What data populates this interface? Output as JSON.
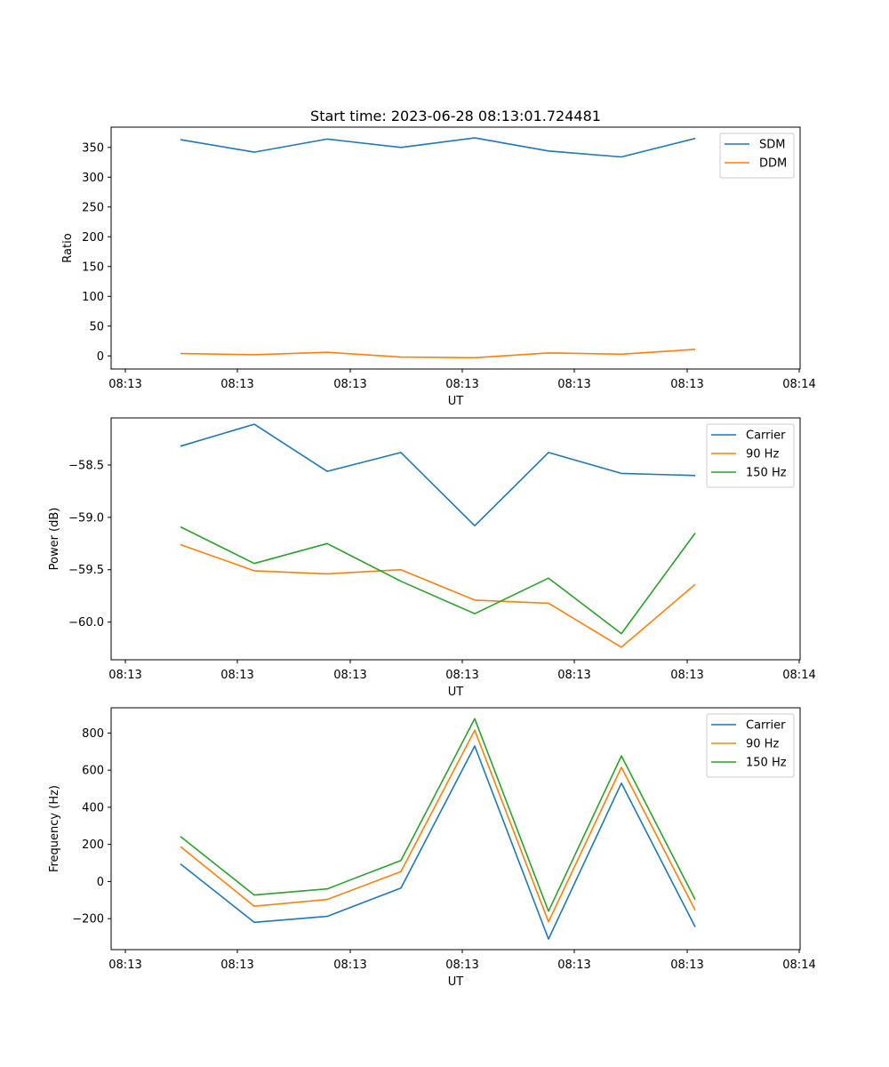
{
  "title": "Start time: 2023-06-28 08:13:01.724481",
  "colors": {
    "blue": "#1f77b4",
    "orange": "#ff7f0e",
    "green": "#2ca02c"
  },
  "chart_data": [
    {
      "type": "line",
      "ylabel": "Ratio",
      "xlabel": "UT",
      "x_ticks": [
        "08:13",
        "08:13",
        "08:13",
        "08:13",
        "08:13",
        "08:13",
        "08:14"
      ],
      "y_ticks": [
        0,
        50,
        100,
        150,
        200,
        250,
        300,
        350
      ],
      "ylim": [
        -22,
        384
      ],
      "legend": "top-right",
      "series": [
        {
          "name": "SDM",
          "color": "#1f77b4",
          "values": [
            363,
            342,
            364,
            350,
            366,
            344,
            334,
            365
          ]
        },
        {
          "name": "DDM",
          "color": "#ff7f0e",
          "values": [
            4,
            2,
            6,
            -2,
            -3,
            5,
            3,
            11
          ]
        }
      ]
    },
    {
      "type": "line",
      "ylabel": "Power (dB)",
      "xlabel": "UT",
      "x_ticks": [
        "08:13",
        "08:13",
        "08:13",
        "08:13",
        "08:13",
        "08:13",
        "08:14"
      ],
      "y_ticks": [
        "−58.5",
        "−59.0",
        "−59.5",
        "−60.0"
      ],
      "y_tick_values": [
        -58.5,
        -59.0,
        -59.5,
        -60.0
      ],
      "ylim": [
        -60.36,
        -58.05
      ],
      "legend": "top-right",
      "series": [
        {
          "name": "Carrier",
          "color": "#1f77b4",
          "values": [
            -58.32,
            -58.11,
            -58.56,
            -58.38,
            -59.08,
            -58.38,
            -58.58,
            -58.6
          ]
        },
        {
          "name": "90 Hz",
          "color": "#ff7f0e",
          "values": [
            -59.26,
            -59.51,
            -59.54,
            -59.5,
            -59.79,
            -59.82,
            -60.24,
            -59.64
          ]
        },
        {
          "name": "150 Hz",
          "color": "#2ca02c",
          "values": [
            -59.09,
            -59.44,
            -59.25,
            -59.61,
            -59.92,
            -59.58,
            -60.11,
            -59.15
          ]
        }
      ]
    },
    {
      "type": "line",
      "ylabel": "Frequency (Hz)",
      "xlabel": "UT",
      "x_ticks": [
        "08:13",
        "08:13",
        "08:13",
        "08:13",
        "08:13",
        "08:13",
        "08:14"
      ],
      "y_ticks": [
        "−200",
        "0",
        "200",
        "400",
        "600",
        "800"
      ],
      "y_tick_values": [
        -200,
        0,
        200,
        400,
        600,
        800
      ],
      "ylim": [
        -367,
        936
      ],
      "legend": "top-right",
      "series": [
        {
          "name": "Carrier",
          "color": "#1f77b4",
          "values": [
            95,
            -220,
            -188,
            -35,
            730,
            -310,
            530,
            -245
          ]
        },
        {
          "name": "90 Hz",
          "color": "#ff7f0e",
          "values": [
            188,
            -133,
            -97,
            53,
            815,
            -217,
            615,
            -155
          ]
        },
        {
          "name": "150 Hz",
          "color": "#2ca02c",
          "values": [
            243,
            -73,
            -40,
            113,
            877,
            -160,
            677,
            -98
          ]
        }
      ]
    }
  ]
}
